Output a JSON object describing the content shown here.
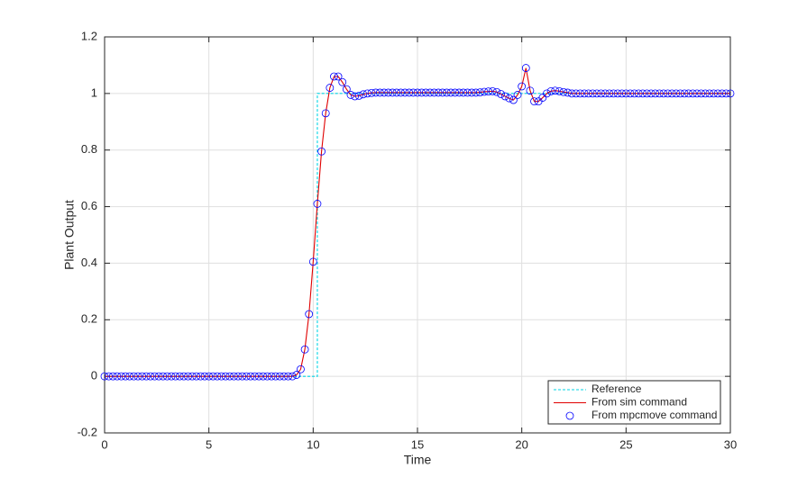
{
  "chart_data": {
    "type": "line",
    "xlabel": "Time",
    "ylabel": "Plant Output",
    "x": [
      0,
      0.2,
      0.4,
      0.6,
      0.8,
      1,
      1.2,
      1.4,
      1.6,
      1.8,
      2,
      2.2,
      2.4,
      2.6,
      2.8,
      3,
      3.2,
      3.4,
      3.6,
      3.8,
      4,
      4.2,
      4.4,
      4.6,
      4.8,
      5,
      5.2,
      5.4,
      5.6,
      5.8,
      6,
      6.2,
      6.4,
      6.6,
      6.8,
      7,
      7.2,
      7.4,
      7.6,
      7.8,
      8,
      8.2,
      8.4,
      8.6,
      8.8,
      9,
      9.2,
      9.4,
      9.6,
      9.8,
      10,
      10.2,
      10.4,
      10.6,
      10.8,
      11,
      11.2,
      11.4,
      11.6,
      11.8,
      12,
      12.2,
      12.4,
      12.6,
      12.8,
      13,
      13.2,
      13.4,
      13.6,
      13.8,
      14,
      14.2,
      14.4,
      14.6,
      14.8,
      15,
      15.2,
      15.4,
      15.6,
      15.8,
      16,
      16.2,
      16.4,
      16.6,
      16.8,
      17,
      17.2,
      17.4,
      17.6,
      17.8,
      18,
      18.2,
      18.4,
      18.6,
      18.8,
      19,
      19.2,
      19.4,
      19.6,
      19.8,
      20,
      20.2,
      20.4,
      20.6,
      20.8,
      21,
      21.2,
      21.4,
      21.6,
      21.8,
      22,
      22.2,
      22.4,
      22.6,
      22.8,
      23,
      23.2,
      23.4,
      23.6,
      23.8,
      24,
      24.2,
      24.4,
      24.6,
      24.8,
      25,
      25.2,
      25.4,
      25.6,
      25.8,
      26,
      26.2,
      26.4,
      26.6,
      26.8,
      27,
      27.2,
      27.4,
      27.6,
      27.8,
      28,
      28.2,
      28.4,
      28.6,
      28.8,
      29,
      29.2,
      29.4,
      29.6,
      29.8,
      30
    ],
    "series": [
      {
        "name": "Reference",
        "color": "#00d5e6",
        "linestyle": "dashed",
        "marker": "none",
        "x": [
          0,
          10.2,
          10.2,
          30
        ],
        "values": [
          0,
          0,
          1,
          1
        ]
      },
      {
        "name": "From sim command",
        "color": "#e00000",
        "linestyle": "solid",
        "marker": "none",
        "values": [
          0,
          0,
          0,
          0,
          0,
          0,
          0,
          0,
          0,
          0,
          0,
          0,
          0,
          0,
          0,
          0,
          0,
          0,
          0,
          0,
          0,
          0,
          0,
          0,
          0,
          0,
          0,
          0,
          0,
          0,
          0,
          0,
          0,
          0,
          0,
          0,
          0,
          0,
          0,
          0,
          0,
          0,
          0,
          0,
          0,
          0,
          0.005,
          0.025,
          0.095,
          0.22,
          0.405,
          0.61,
          0.795,
          0.93,
          1.02,
          1.06,
          1.06,
          1.04,
          1.015,
          0.995,
          0.99,
          0.992,
          0.997,
          1,
          1.002,
          1.003,
          1.003,
          1.003,
          1.003,
          1.003,
          1.003,
          1.003,
          1.003,
          1.003,
          1.003,
          1.003,
          1.003,
          1.003,
          1.003,
          1.003,
          1.003,
          1.003,
          1.003,
          1.003,
          1.003,
          1.003,
          1.003,
          1.003,
          1.003,
          1.003,
          1.004,
          1.006,
          1.007,
          1.008,
          1.005,
          0.998,
          0.99,
          0.983,
          0.977,
          0.995,
          1.025,
          1.09,
          1.01,
          0.972,
          0.972,
          0.985,
          1,
          1.008,
          1.01,
          1.008,
          1.005,
          1.003,
          1,
          1,
          1,
          1,
          1,
          1,
          1,
          1,
          1,
          1,
          1,
          1,
          1,
          1,
          1,
          1,
          1,
          1,
          1,
          1,
          1,
          1,
          1,
          1,
          1,
          1,
          1,
          1,
          1,
          1,
          1,
          1,
          1,
          1,
          1,
          1,
          1,
          1,
          1
        ]
      },
      {
        "name": "From mpcmove command",
        "color": "#0000ff",
        "linestyle": "none",
        "marker": "circle",
        "values": [
          0,
          0,
          0,
          0,
          0,
          0,
          0,
          0,
          0,
          0,
          0,
          0,
          0,
          0,
          0,
          0,
          0,
          0,
          0,
          0,
          0,
          0,
          0,
          0,
          0,
          0,
          0,
          0,
          0,
          0,
          0,
          0,
          0,
          0,
          0,
          0,
          0,
          0,
          0,
          0,
          0,
          0,
          0,
          0,
          0,
          0,
          0.005,
          0.025,
          0.095,
          0.22,
          0.405,
          0.61,
          0.795,
          0.93,
          1.02,
          1.06,
          1.06,
          1.04,
          1.015,
          0.995,
          0.99,
          0.992,
          0.997,
          1,
          1.002,
          1.003,
          1.003,
          1.003,
          1.003,
          1.003,
          1.003,
          1.003,
          1.003,
          1.003,
          1.003,
          1.003,
          1.003,
          1.003,
          1.003,
          1.003,
          1.003,
          1.003,
          1.003,
          1.003,
          1.003,
          1.003,
          1.003,
          1.003,
          1.003,
          1.003,
          1.004,
          1.006,
          1.007,
          1.008,
          1.005,
          0.998,
          0.99,
          0.983,
          0.977,
          0.995,
          1.025,
          1.09,
          1.01,
          0.972,
          0.972,
          0.985,
          1,
          1.008,
          1.01,
          1.008,
          1.005,
          1.003,
          1,
          1,
          1,
          1,
          1,
          1,
          1,
          1,
          1,
          1,
          1,
          1,
          1,
          1,
          1,
          1,
          1,
          1,
          1,
          1,
          1,
          1,
          1,
          1,
          1,
          1,
          1,
          1,
          1,
          1,
          1,
          1,
          1,
          1,
          1,
          1,
          1,
          1,
          1
        ]
      }
    ],
    "xlim": [
      0,
      30
    ],
    "xticks": [
      0,
      5,
      10,
      15,
      20,
      25,
      30
    ],
    "ylim": [
      -0.2,
      1.2
    ],
    "yticks": [
      -0.2,
      0,
      0.2,
      0.4,
      0.6,
      0.8,
      1,
      1.2
    ],
    "grid": true,
    "legend": "southeast"
  }
}
